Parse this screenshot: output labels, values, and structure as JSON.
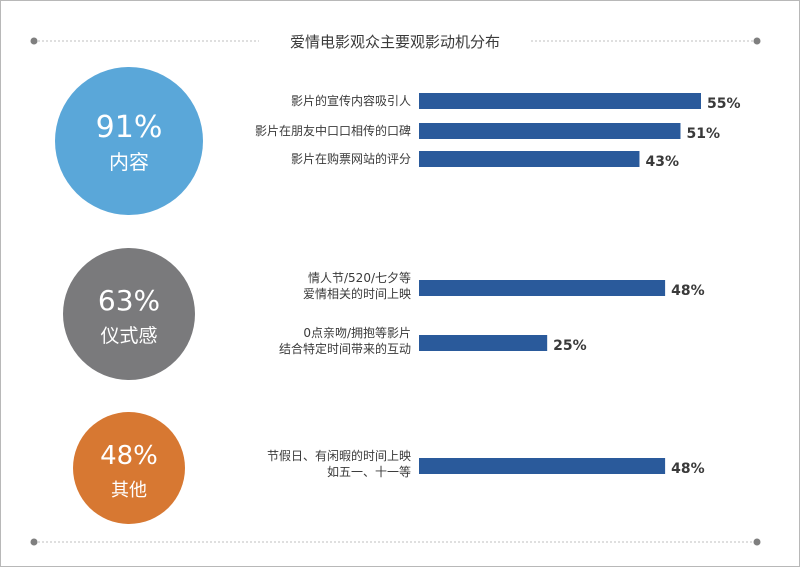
{
  "colors": {
    "bar": "#2a5a9b",
    "divider": "#bfbfbf",
    "dot": "#7f7f7f",
    "label": "#3a3a3a",
    "circle_text": "#ffffff"
  },
  "chart_data": {
    "type": "bar",
    "orientation": "horizontal",
    "title": "爱情电影观众主要观影动机分布",
    "grid": false,
    "legend": "none",
    "xlim": [
      0,
      60
    ],
    "groups": [
      {
        "percent_label": "91%",
        "category": "内容",
        "color": "#5aa7d9",
        "items": [
          {
            "label_lines": [
              "影片的宣传内容吸引人"
            ],
            "value": 55,
            "value_label": "55%"
          },
          {
            "label_lines": [
              "影片在朋友中口口相传的口碑"
            ],
            "value": 51,
            "value_label": "51%"
          },
          {
            "label_lines": [
              "影片在购票网站的评分"
            ],
            "value": 43,
            "value_label": "43%"
          }
        ]
      },
      {
        "percent_label": "63%",
        "category": "仪式感",
        "color": "#7a7a7c",
        "items": [
          {
            "label_lines": [
              "情人节/520/七夕等",
              "爱情相关的时间上映"
            ],
            "value": 48,
            "value_label": "48%"
          },
          {
            "label_lines": [
              "0点亲吻/拥抱等影片",
              "结合特定时间带来的互动"
            ],
            "value": 25,
            "value_label": "25%"
          }
        ]
      },
      {
        "percent_label": "48%",
        "category": "其他",
        "color": "#d77832",
        "items": [
          {
            "label_lines": [
              "节假日、有闲暇的时间上映",
              "如五一、十一等"
            ],
            "value": 48,
            "value_label": "48%"
          }
        ]
      }
    ]
  }
}
